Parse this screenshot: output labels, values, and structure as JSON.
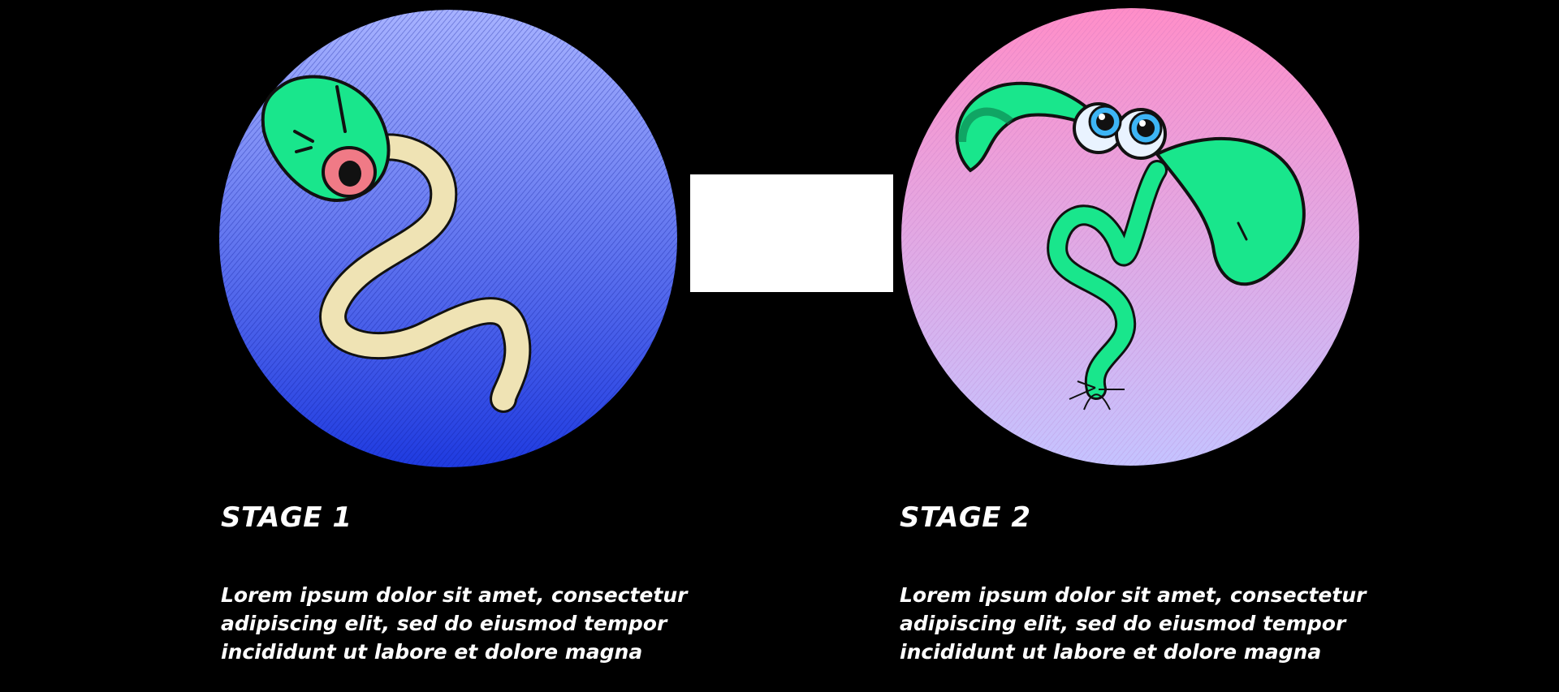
{
  "colors": {
    "background": "#000000",
    "text": "#ffffff",
    "stage1_circle_top": "#9aa8ff",
    "stage1_circle_bottom": "#2440e6",
    "stage2_circle_top": "#ff8ec8",
    "stage2_circle_bottom": "#c7c4ff",
    "creature_green": "#19e68c",
    "tail_cream": "#efe3b4",
    "eye_pink": "#f07a86"
  },
  "stages": [
    {
      "title": "STAGE 1",
      "description_lines": [
        "Lorem ipsum dolor sit amet, consectetur",
        "adipiscing elit, sed do eiusmod tempor",
        "incididunt ut labore et dolore magna"
      ],
      "illustration": "tadpole-seed-illustration"
    },
    {
      "title": "STAGE 2",
      "description_lines": [
        "Lorem ipsum dolor sit amet, consectetur",
        "adipiscing elit, sed do eiusmod tempor",
        "incididunt ut labore et dolore magna"
      ],
      "illustration": "sprout-with-eyes-illustration"
    }
  ]
}
